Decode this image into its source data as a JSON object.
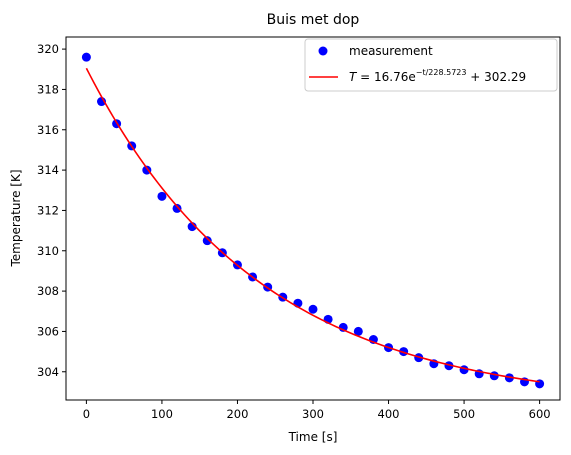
{
  "chart_data": {
    "type": "scatter",
    "title": "Buis met dop",
    "xlabel": "Time [s]",
    "ylabel": "Temperature [K]",
    "xlim": [
      -27,
      627
    ],
    "ylim": [
      302.6,
      320.6
    ],
    "xticks": [
      0,
      100,
      200,
      300,
      400,
      500,
      600
    ],
    "yticks": [
      304,
      306,
      308,
      310,
      312,
      314,
      316,
      318,
      320
    ],
    "grid": false,
    "legend_position": "top-right",
    "series": [
      {
        "name": "measurement",
        "kind": "scatter",
        "color": "#0000ff",
        "x": [
          0,
          20,
          40,
          60,
          80,
          100,
          120,
          140,
          160,
          180,
          200,
          220,
          240,
          260,
          280,
          300,
          320,
          340,
          360,
          380,
          400,
          420,
          440,
          460,
          480,
          500,
          520,
          540,
          560,
          580,
          600
        ],
        "y": [
          319.6,
          317.4,
          316.3,
          315.2,
          314.0,
          312.7,
          312.1,
          311.2,
          310.5,
          309.9,
          309.3,
          308.7,
          308.2,
          307.7,
          307.4,
          307.1,
          306.6,
          306.2,
          306.0,
          305.6,
          305.2,
          305.0,
          304.7,
          304.4,
          304.3,
          304.1,
          303.9,
          303.8,
          303.7,
          303.5,
          303.4
        ]
      },
      {
        "name": "T = 16.76e^{-t/228.5723} + 302.29",
        "kind": "line",
        "color": "#ff0000",
        "model": {
          "a": 16.76,
          "tau": 228.5723,
          "c": 302.29,
          "x_range": [
            0,
            600
          ]
        }
      }
    ]
  },
  "legend": {
    "measurement_label": "measurement",
    "fit_T": "T",
    "fit_eq": " = 16.76e",
    "fit_exp": "−t/228.5723",
    "fit_tail": " + 302.29"
  }
}
